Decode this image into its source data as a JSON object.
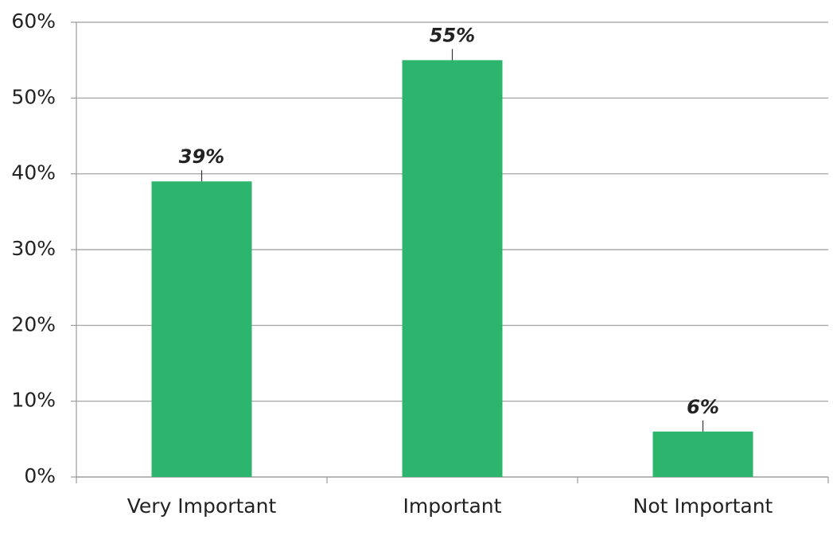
{
  "chart_data": {
    "type": "bar",
    "categories": [
      "Very Important",
      "Important",
      "Not Important"
    ],
    "values": [
      39,
      55,
      6
    ],
    "value_labels": [
      "39%",
      "55%",
      "6%"
    ],
    "color": "#2db56e",
    "ylim": [
      0,
      60
    ],
    "yticks": [
      {
        "value": 0,
        "label": "0%"
      },
      {
        "value": 10,
        "label": "10%"
      },
      {
        "value": 20,
        "label": "20%"
      },
      {
        "value": 30,
        "label": "30%"
      },
      {
        "value": 40,
        "label": "40%"
      },
      {
        "value": 50,
        "label": "50%"
      },
      {
        "value": 60,
        "label": "60%"
      }
    ],
    "grid": true
  }
}
